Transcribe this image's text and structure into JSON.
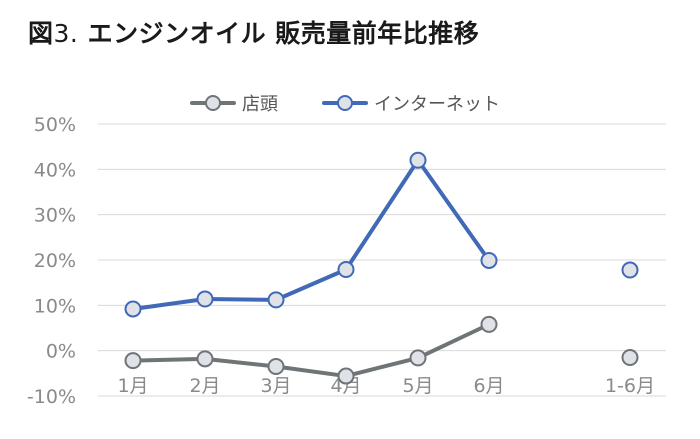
{
  "figure": {
    "title_prefix": "図",
    "title_number": "3.",
    "title_text": " エンジンオイル 販売量前年比推移"
  },
  "chart_data": {
    "type": "line",
    "categories": [
      "1月",
      "2月",
      "3月",
      "4月",
      "5月",
      "6月",
      "1-6月"
    ],
    "ylim": [
      -10,
      50
    ],
    "yticks": [
      50,
      40,
      30,
      20,
      10,
      0,
      -10
    ],
    "ytick_labels": [
      "50%",
      "40%",
      "30%",
      "20%",
      "10%",
      "0%",
      "-10%"
    ],
    "grid": true,
    "legend_position": "top",
    "series": [
      {
        "name": "店頭",
        "color": "#6f7477",
        "values": [
          -2.2,
          -1.8,
          -3.5,
          -5.6,
          -1.6,
          5.8,
          -1.5
        ],
        "connected_points": 6
      },
      {
        "name": "インターネット",
        "color": "#4169b8",
        "values": [
          9.2,
          11.4,
          11.2,
          17.9,
          42.0,
          19.9,
          17.8
        ],
        "connected_points": 6
      }
    ],
    "marker_fill": "#dfe3e8"
  }
}
